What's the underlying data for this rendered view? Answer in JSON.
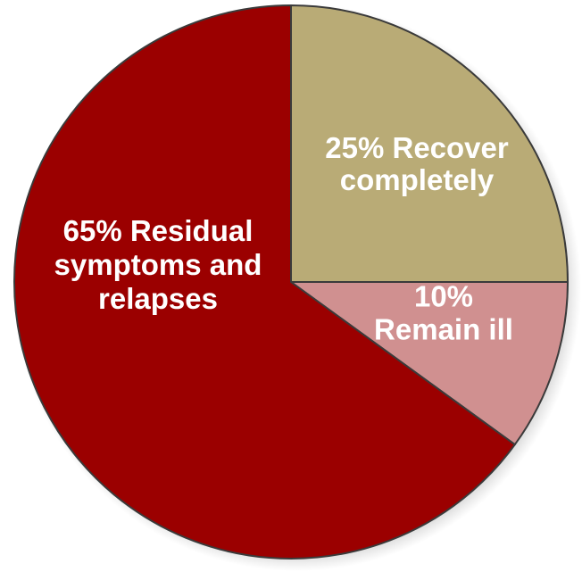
{
  "chart_data": {
    "type": "pie",
    "title": "",
    "slices": [
      {
        "label": "Recover completely",
        "value": 25,
        "color": "#b9ab76",
        "label_lines": [
          "25% Recover",
          "completely"
        ]
      },
      {
        "label": "Remain ill",
        "value": 10,
        "color": "#d09090",
        "label_lines": [
          "10%",
          "Remain ill"
        ]
      },
      {
        "label": "Residual symptoms and relapses",
        "value": 65,
        "color": "#9b0000",
        "label_lines": [
          "65% Residual",
          "symptoms and",
          "relapses"
        ]
      }
    ],
    "start_angle": "12 o'clock",
    "direction": "clockwise",
    "slice_border_color": "#3a3a3a",
    "shadow": true
  }
}
